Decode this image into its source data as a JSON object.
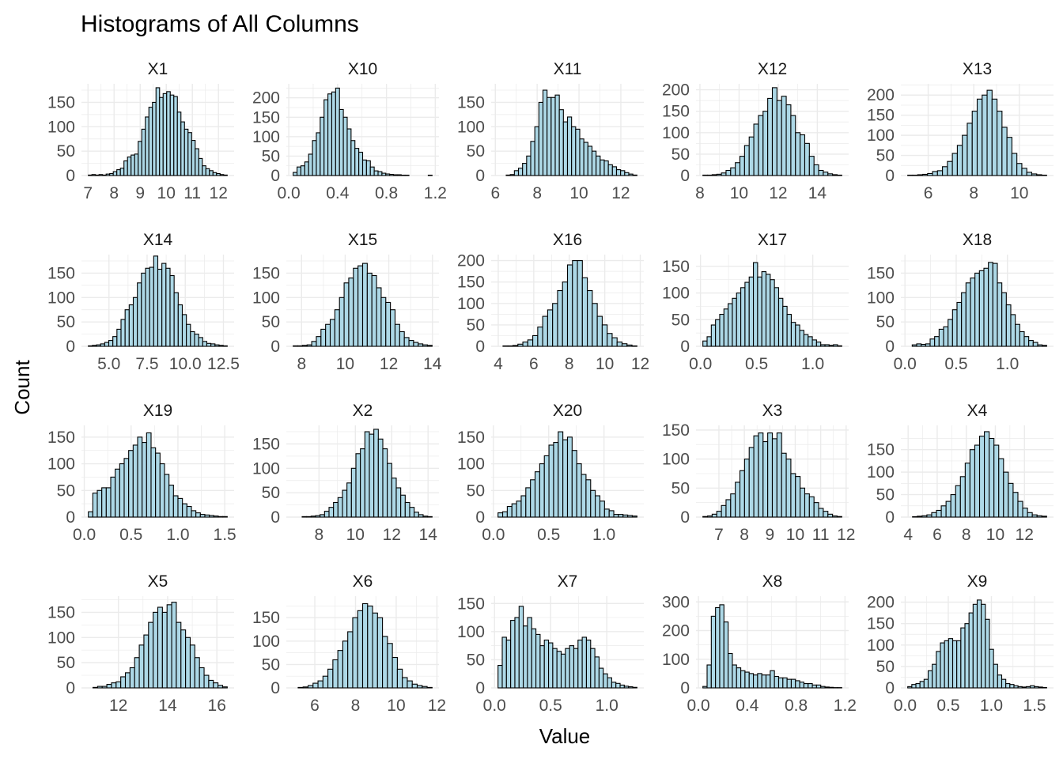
{
  "chart_data": {
    "type": "histogram",
    "title": "Histograms of All Columns",
    "xlabel": "Value",
    "ylabel": "Count",
    "layout": {
      "rows": 4,
      "cols": 5
    },
    "colors": {
      "bar_fill": "#add8e6",
      "bar_stroke": "#000000",
      "grid": "#ebebeb",
      "text": "#4d4d4d",
      "title": "#000000"
    },
    "panels": [
      {
        "name": "X1",
        "xlim": [
          6.75,
          12.6
        ],
        "ylim": [
          0,
          188
        ],
        "xticks": [
          7,
          8,
          9,
          10,
          11,
          12
        ],
        "xtick_labels": [
          "7",
          "8",
          "9",
          "10",
          "11",
          "12"
        ],
        "yticks": [
          0,
          50,
          100,
          150
        ],
        "counts": [
          1,
          2,
          1,
          2,
          1,
          3,
          4,
          8,
          12,
          15,
          30,
          38,
          42,
          44,
          70,
          95,
          120,
          140,
          150,
          180,
          160,
          168,
          172,
          165,
          162,
          130,
          110,
          95,
          88,
          72,
          55,
          35,
          20,
          14,
          10,
          6,
          4,
          2,
          1
        ]
      },
      {
        "name": "X10",
        "xlim": [
          -0.02,
          1.23
        ],
        "ylim": [
          0,
          236
        ],
        "xticks": [
          0,
          0.4,
          0.8,
          1.2
        ],
        "xtick_labels": [
          "0.0",
          "0.4",
          "0.8",
          "1.2"
        ],
        "yticks": [
          0,
          50,
          100,
          150,
          200
        ],
        "counts": [
          8,
          22,
          25,
          35,
          55,
          90,
          110,
          150,
          195,
          210,
          215,
          225,
          170,
          150,
          120,
          90,
          70,
          60,
          40,
          38,
          22,
          12,
          10,
          6,
          4,
          3,
          2,
          2,
          1,
          1,
          0,
          0,
          0,
          0,
          0,
          1
        ]
      },
      {
        "name": "X11",
        "xlim": [
          5.8,
          13.1
        ],
        "ylim": [
          0,
          188
        ],
        "xticks": [
          6,
          8,
          10,
          12
        ],
        "xtick_labels": [
          "6",
          "8",
          "10",
          "12"
        ],
        "yticks": [
          0,
          50,
          100,
          150
        ],
        "counts": [
          0,
          0,
          1,
          2,
          10,
          15,
          25,
          40,
          70,
          100,
          150,
          175,
          160,
          160,
          165,
          135,
          110,
          120,
          100,
          95,
          75,
          68,
          60,
          50,
          40,
          32,
          30,
          22,
          18,
          12,
          10,
          6,
          3,
          1
        ]
      },
      {
        "name": "X12",
        "xlim": [
          7.8,
          15.6
        ],
        "ylim": [
          0,
          214
        ],
        "xticks": [
          8,
          10,
          12,
          14
        ],
        "xtick_labels": [
          "8",
          "10",
          "12",
          "14"
        ],
        "yticks": [
          0,
          50,
          100,
          150,
          200
        ],
        "counts": [
          1,
          1,
          2,
          3,
          6,
          12,
          18,
          30,
          45,
          70,
          90,
          120,
          140,
          150,
          180,
          205,
          175,
          185,
          165,
          140,
          100,
          95,
          75,
          45,
          25,
          12,
          8,
          4,
          2,
          1
        ]
      },
      {
        "name": "X13",
        "xlim": [
          4.8,
          11.5
        ],
        "ylim": [
          0,
          228
        ],
        "xticks": [
          6,
          8,
          10
        ],
        "xtick_labels": [
          "6",
          "8",
          "10"
        ],
        "yticks": [
          0,
          50,
          100,
          150,
          200
        ],
        "counts": [
          1,
          1,
          2,
          3,
          5,
          10,
          12,
          22,
          35,
          55,
          75,
          100,
          130,
          160,
          190,
          200,
          212,
          190,
          160,
          120,
          95,
          55,
          30,
          18,
          8,
          4,
          2,
          1
        ]
      },
      {
        "name": "X14",
        "xlim": [
          3.2,
          13.2
        ],
        "ylim": [
          0,
          188
        ],
        "xticks": [
          5,
          7.5,
          10,
          12.5
        ],
        "xtick_labels": [
          "5.0",
          "7.5",
          "10.0",
          "12.5"
        ],
        "yticks": [
          0,
          50,
          100,
          150
        ],
        "counts": [
          1,
          2,
          3,
          5,
          8,
          12,
          20,
          35,
          55,
          75,
          85,
          100,
          130,
          150,
          160,
          162,
          185,
          158,
          170,
          160,
          145,
          110,
          85,
          65,
          45,
          30,
          25,
          18,
          10,
          6,
          5,
          3,
          2,
          1
        ]
      },
      {
        "name": "X15",
        "xlim": [
          7.3,
          14.3
        ],
        "ylim": [
          0,
          188
        ],
        "xticks": [
          8,
          10,
          12,
          14
        ],
        "xtick_labels": [
          "8",
          "10",
          "12",
          "14"
        ],
        "yticks": [
          0,
          50,
          100,
          150
        ],
        "counts": [
          1,
          1,
          2,
          3,
          10,
          20,
          35,
          45,
          55,
          75,
          100,
          130,
          140,
          160,
          165,
          170,
          150,
          145,
          120,
          100,
          90,
          75,
          45,
          30,
          18,
          12,
          8,
          5,
          3,
          2
        ]
      },
      {
        "name": "X16",
        "xlim": [
          3.6,
          12.2
        ],
        "ylim": [
          0,
          214
        ],
        "xticks": [
          4,
          6,
          8,
          10,
          12
        ],
        "xtick_labels": [
          "4",
          "6",
          "8",
          "10",
          "12"
        ],
        "yticks": [
          0,
          50,
          100,
          150,
          200
        ],
        "counts": [
          0,
          1,
          1,
          2,
          5,
          10,
          15,
          25,
          45,
          70,
          85,
          100,
          130,
          150,
          190,
          200,
          200,
          160,
          130,
          100,
          70,
          50,
          30,
          20,
          10,
          6,
          3,
          1
        ]
      },
      {
        "name": "X17",
        "xlim": [
          -0.04,
          1.32
        ],
        "ylim": [
          0,
          172
        ],
        "xticks": [
          0,
          0.5,
          1
        ],
        "xtick_labels": [
          "0.0",
          "0.5",
          "1.0"
        ],
        "yticks": [
          0,
          50,
          100,
          150
        ],
        "counts": [
          10,
          18,
          40,
          50,
          60,
          70,
          80,
          90,
          100,
          110,
          120,
          130,
          157,
          130,
          140,
          135,
          125,
          110,
          90,
          75,
          60,
          45,
          40,
          30,
          22,
          18,
          12,
          8,
          3,
          3,
          2,
          3,
          1
        ]
      },
      {
        "name": "X18",
        "xlim": [
          -0.04,
          1.45
        ],
        "ylim": [
          0,
          188
        ],
        "xticks": [
          0,
          0.5,
          1
        ],
        "xtick_labels": [
          "0.0",
          "0.5",
          "1.0"
        ],
        "yticks": [
          0,
          50,
          100,
          150
        ],
        "counts": [
          0,
          3,
          5,
          4,
          5,
          15,
          20,
          35,
          40,
          55,
          75,
          90,
          110,
          130,
          140,
          150,
          155,
          160,
          172,
          170,
          130,
          110,
          85,
          65,
          45,
          30,
          20,
          12,
          8,
          3,
          2
        ]
      },
      {
        "name": "X19",
        "xlim": [
          -0.03,
          1.6
        ],
        "ylim": [
          0,
          172
        ],
        "xticks": [
          0,
          0.5,
          1,
          1.5
        ],
        "xtick_labels": [
          "0.0",
          "0.5",
          "1.0",
          "1.5"
        ],
        "yticks": [
          0,
          50,
          100,
          150
        ],
        "counts": [
          10,
          45,
          50,
          55,
          55,
          75,
          90,
          100,
          110,
          125,
          135,
          150,
          140,
          158,
          130,
          120,
          100,
          80,
          60,
          40,
          35,
          25,
          20,
          12,
          8,
          5,
          4,
          3,
          2,
          1,
          1
        ]
      },
      {
        "name": "X2",
        "xlim": [
          6.2,
          14.6
        ],
        "ylim": [
          0,
          188
        ],
        "xticks": [
          8,
          10,
          12,
          14
        ],
        "xtick_labels": [
          "8",
          "10",
          "12",
          "14"
        ],
        "yticks": [
          0,
          50,
          100,
          150
        ],
        "counts": [
          0,
          0,
          1,
          1,
          2,
          3,
          5,
          12,
          20,
          30,
          40,
          55,
          70,
          100,
          130,
          140,
          175,
          170,
          180,
          160,
          140,
          110,
          80,
          60,
          45,
          30,
          20,
          10,
          5,
          2,
          1
        ]
      },
      {
        "name": "X20",
        "xlim": [
          -0.02,
          1.36
        ],
        "ylim": [
          0,
          172
        ],
        "xticks": [
          0,
          0.5,
          1
        ],
        "xtick_labels": [
          "0.0",
          "0.5",
          "1.0"
        ],
        "yticks": [
          0,
          50,
          100,
          150
        ],
        "counts": [
          8,
          10,
          20,
          25,
          30,
          40,
          55,
          70,
          85,
          100,
          115,
          135,
          140,
          160,
          145,
          150,
          125,
          100,
          80,
          70,
          50,
          40,
          30,
          15,
          12,
          5,
          5,
          4,
          3,
          2
        ]
      },
      {
        "name": "X3",
        "xlim": [
          6.1,
          12.1
        ],
        "ylim": [
          0,
          158
        ],
        "xticks": [
          7,
          8,
          9,
          10,
          11,
          12
        ],
        "xtick_labels": [
          "7",
          "8",
          "9",
          "10",
          "11",
          "12"
        ],
        "yticks": [
          0,
          50,
          100,
          150
        ],
        "counts": [
          1,
          2,
          5,
          10,
          20,
          30,
          40,
          60,
          80,
          100,
          120,
          140,
          145,
          130,
          145,
          135,
          145,
          110,
          100,
          75,
          70,
          50,
          40,
          35,
          25,
          15,
          10,
          5,
          2,
          1
        ]
      },
      {
        "name": "X4",
        "xlim": [
          3.5,
          14
        ],
        "ylim": [
          0,
          204
        ],
        "xticks": [
          4,
          6,
          8,
          10,
          12
        ],
        "xtick_labels": [
          "4",
          "6",
          "8",
          "10",
          "12"
        ],
        "yticks": [
          0,
          50,
          100,
          150
        ],
        "counts": [
          0,
          1,
          2,
          3,
          5,
          10,
          15,
          25,
          35,
          50,
          70,
          90,
          120,
          150,
          160,
          180,
          190,
          175,
          160,
          130,
          100,
          75,
          55,
          35,
          20,
          10,
          5,
          3,
          2
        ]
      },
      {
        "name": "X5",
        "xlim": [
          10.5,
          16.7
        ],
        "ylim": [
          0,
          182
        ],
        "xticks": [
          12,
          14,
          16
        ],
        "xtick_labels": [
          "12",
          "14",
          "16"
        ],
        "yticks": [
          0,
          50,
          100,
          150
        ],
        "counts": [
          0,
          1,
          3,
          3,
          7,
          10,
          12,
          22,
          30,
          40,
          60,
          85,
          105,
          130,
          150,
          160,
          150,
          165,
          170,
          130,
          115,
          100,
          85,
          60,
          40,
          25,
          15,
          10,
          5,
          2
        ]
      },
      {
        "name": "X6",
        "xlim": [
          4.6,
          12.1
        ],
        "ylim": [
          0,
          196
        ],
        "xticks": [
          6,
          8,
          10,
          12
        ],
        "xtick_labels": [
          "6",
          "8",
          "10",
          "12"
        ],
        "yticks": [
          0,
          50,
          100,
          150
        ],
        "counts": [
          0,
          1,
          2,
          5,
          10,
          15,
          25,
          40,
          60,
          80,
          100,
          120,
          150,
          165,
          180,
          175,
          160,
          150,
          110,
          95,
          65,
          40,
          22,
          15,
          8,
          5,
          3,
          1
        ]
      },
      {
        "name": "X7",
        "xlim": [
          -0.03,
          1.33
        ],
        "ylim": [
          0,
          163
        ],
        "xticks": [
          0,
          0.5,
          1
        ],
        "xtick_labels": [
          "0.0",
          "0.5",
          "1.0"
        ],
        "yticks": [
          0,
          50,
          100,
          150
        ],
        "counts": [
          40,
          90,
          85,
          120,
          125,
          145,
          110,
          125,
          105,
          95,
          75,
          85,
          80,
          70,
          65,
          60,
          70,
          75,
          70,
          85,
          90,
          85,
          70,
          55,
          35,
          25,
          18,
          10,
          8,
          5,
          3,
          2,
          1
        ]
      },
      {
        "name": "X8",
        "xlim": [
          -0.02,
          1.23
        ],
        "ylim": [
          0,
          320
        ],
        "xticks": [
          0,
          0.4,
          0.8,
          1.2
        ],
        "xtick_labels": [
          "0.0",
          "0.4",
          "0.8",
          "1.2"
        ],
        "yticks": [
          0,
          100,
          200,
          300
        ],
        "counts": [
          5,
          80,
          250,
          280,
          290,
          230,
          120,
          80,
          70,
          60,
          55,
          50,
          45,
          50,
          45,
          45,
          60,
          40,
          35,
          35,
          30,
          30,
          25,
          20,
          15,
          15,
          10,
          10,
          5,
          3,
          2,
          1,
          1
        ]
      },
      {
        "name": "X9",
        "xlim": [
          -0.05,
          1.72
        ],
        "ylim": [
          0,
          214
        ],
        "xticks": [
          0,
          0.5,
          1,
          1.5
        ],
        "xtick_labels": [
          "0.0",
          "0.5",
          "1.0",
          "1.5"
        ],
        "yticks": [
          0,
          50,
          100,
          150,
          200
        ],
        "counts": [
          3,
          8,
          10,
          15,
          20,
          40,
          55,
          85,
          105,
          110,
          115,
          110,
          110,
          140,
          150,
          175,
          195,
          205,
          195,
          160,
          90,
          55,
          30,
          20,
          10,
          8,
          5,
          3,
          2,
          3,
          5,
          3,
          2,
          1
        ]
      }
    ]
  }
}
